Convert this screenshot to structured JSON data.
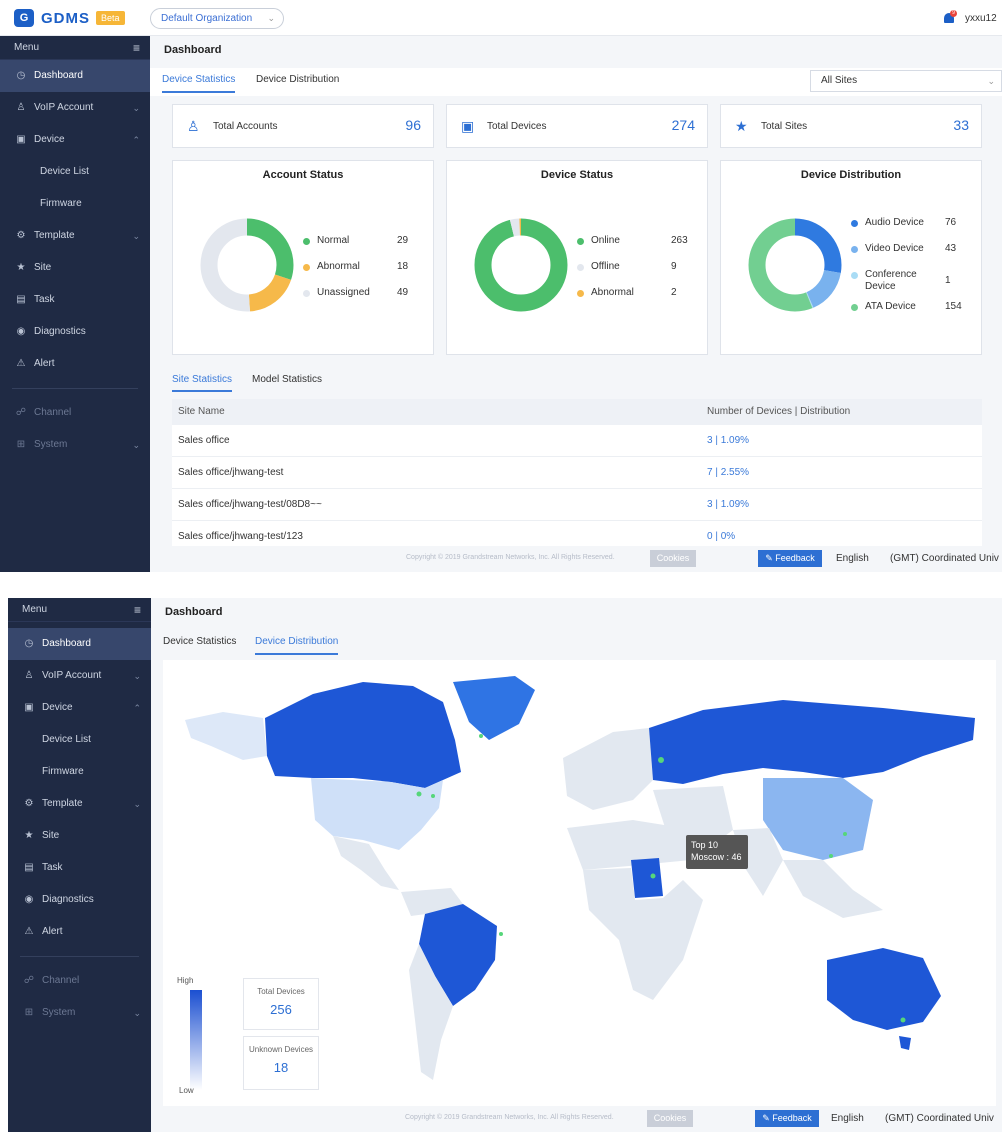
{
  "brand": {
    "name": "GDMS",
    "badge": "Beta"
  },
  "org_selector": {
    "value": "Default Organization"
  },
  "user": {
    "name": "yxxu12",
    "notification_count": "9"
  },
  "sidebar": {
    "menu_label": "Menu",
    "items": [
      {
        "label": "Dashboard",
        "icon": "dashboard-icon"
      },
      {
        "label": "VoIP Account",
        "icon": "user-icon"
      },
      {
        "label": "Device",
        "icon": "device-icon"
      },
      {
        "label": "Device List"
      },
      {
        "label": "Firmware"
      },
      {
        "label": "Template",
        "icon": "gear-icon"
      },
      {
        "label": "Site",
        "icon": "site-icon"
      },
      {
        "label": "Task",
        "icon": "task-icon"
      },
      {
        "label": "Diagnostics",
        "icon": "diagnostics-icon"
      },
      {
        "label": "Alert",
        "icon": "alert-icon"
      },
      {
        "label": "Channel",
        "icon": "channel-icon"
      },
      {
        "label": "System",
        "icon": "system-icon"
      }
    ]
  },
  "page": {
    "title": "Dashboard",
    "tabs": [
      "Device Statistics",
      "Device Distribution"
    ],
    "site_filter": "All Sites"
  },
  "stats": {
    "accounts": {
      "label": "Total Accounts",
      "value": "96"
    },
    "devices": {
      "label": "Total Devices",
      "value": "274"
    },
    "sites": {
      "label": "Total Sites",
      "value": "33"
    }
  },
  "account_status": {
    "title": "Account Status",
    "items": [
      {
        "name": "Normal",
        "value": "29",
        "color": "#4cbe6c"
      },
      {
        "name": "Abnormal",
        "value": "18",
        "color": "#f6b94a"
      },
      {
        "name": "Unassigned",
        "value": "49",
        "color": "#e3e7ee"
      }
    ]
  },
  "device_status": {
    "title": "Device Status",
    "items": [
      {
        "name": "Online",
        "value": "263",
        "color": "#4cbe6c"
      },
      {
        "name": "Offline",
        "value": "9",
        "color": "#e3e7ee"
      },
      {
        "name": "Abnormal",
        "value": "2",
        "color": "#f6b94a"
      }
    ]
  },
  "device_distribution": {
    "title": "Device Distribution",
    "items": [
      {
        "name": "Audio Device",
        "value": "76",
        "color": "#2f7ae0"
      },
      {
        "name": "Video Device",
        "value": "43",
        "color": "#79b2ee"
      },
      {
        "name": "Conference Device",
        "value": "1",
        "color": "#a9dcf5"
      },
      {
        "name": "ATA Device",
        "value": "154",
        "color": "#72cf91"
      }
    ]
  },
  "site_table": {
    "tabs": [
      "Site Statistics",
      "Model Statistics"
    ],
    "columns": [
      "Site Name",
      "Number of Devices | Distribution"
    ],
    "rows": [
      [
        "Sales office",
        "3 | 1.09%"
      ],
      [
        "Sales office/jhwang-test",
        "7 | 2.55%"
      ],
      [
        "Sales office/jhwang-test/08D8~~",
        "3 | 1.09%"
      ],
      [
        "Sales office/jhwang-test/123",
        "0 | 0%"
      ]
    ]
  },
  "footer": {
    "copyright": "Copyright © 2019 Grandstream Networks, Inc. All Rights Reserved.",
    "cookies": "Cookies",
    "feedback": "Feedback",
    "language": "English",
    "timezone": "(GMT) Coordinated Univ"
  },
  "map": {
    "tooltip_line1": "Top 10",
    "tooltip_line2": "Moscow : 46",
    "legend_high": "High",
    "legend_low": "Low",
    "total_label": "Total Devices",
    "total_value": "256",
    "unknown_label": "Unknown Devices",
    "unknown_value": "18"
  }
}
